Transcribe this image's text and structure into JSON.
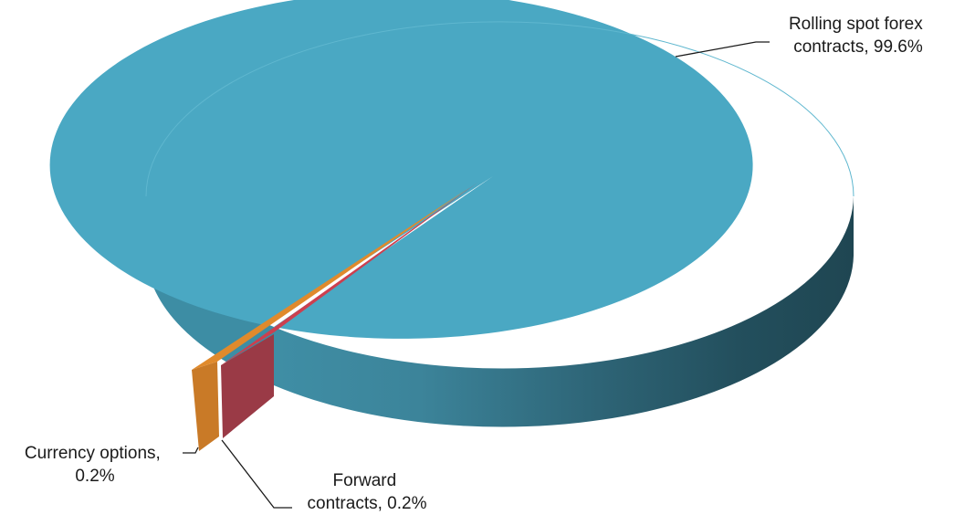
{
  "chart_data": {
    "type": "pie",
    "style": "3d",
    "title": "",
    "slices": [
      {
        "label": "Rolling spot forex contracts",
        "value": 99.6,
        "display": "99.6%",
        "color": "#4aa8c3"
      },
      {
        "label": "Forward contracts",
        "value": 0.2,
        "display": "0.2%",
        "color": "#cc3f4f"
      },
      {
        "label": "Currency options",
        "value": 0.2,
        "display": "0.2%",
        "color": "#e08a2c"
      }
    ],
    "data_labels": [
      {
        "line1": "Rolling spot forex",
        "line2": "contracts, 99.6%"
      },
      {
        "line1": "Forward",
        "line2": "contracts, 0.2%"
      },
      {
        "line1": "Currency options,",
        "line2": "0.2%"
      }
    ],
    "legend": "none"
  }
}
